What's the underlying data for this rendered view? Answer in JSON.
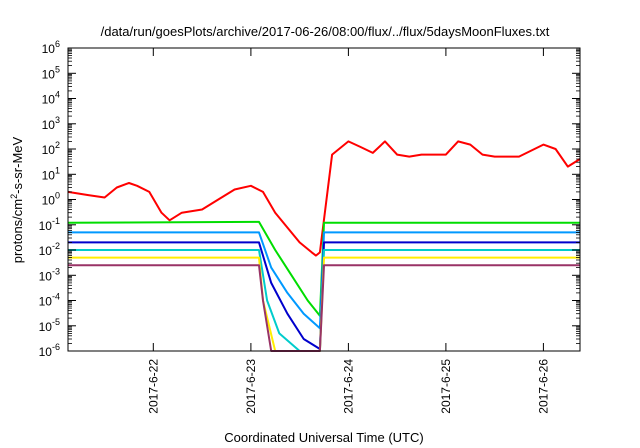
{
  "chart_data": {
    "type": "line",
    "title": "/data/run/goesPlots/archive/2017-06-26/08:00/flux/../flux/5daysMoonFluxes.txt",
    "xlabel": "Coordinated Universal Time (UTC)",
    "ylabel": {
      "base": "protons/cm",
      "sup": "2",
      "rest": "-s-sr-MeV"
    },
    "y_scale": "log",
    "ylim": [
      1e-06,
      1000000.0
    ],
    "y_ticks": [
      {
        "base": "10",
        "exp": "-6"
      },
      {
        "base": "10",
        "exp": "-5"
      },
      {
        "base": "10",
        "exp": "-4"
      },
      {
        "base": "10",
        "exp": "-3"
      },
      {
        "base": "10",
        "exp": "-2"
      },
      {
        "base": "10",
        "exp": "-1"
      },
      {
        "base": "10",
        "exp": "0"
      },
      {
        "base": "10",
        "exp": "1"
      },
      {
        "base": "10",
        "exp": "2"
      },
      {
        "base": "10",
        "exp": "3"
      },
      {
        "base": "10",
        "exp": "4"
      },
      {
        "base": "10",
        "exp": "5"
      },
      {
        "base": "10",
        "exp": "6"
      }
    ],
    "xlim": [
      "2017-06-21 03:00",
      "2017-06-26 09:00"
    ],
    "x_ticks": [
      "2017-6-22",
      "2017-6-23",
      "2017-6-24",
      "2017-6-25",
      "2017-6-26"
    ],
    "grid": false,
    "legend": "none",
    "series": [
      {
        "color": "#ff0000",
        "x": [
          "2017-06-21 03:00",
          "2017-06-21 08:00",
          "2017-06-21 12:00",
          "2017-06-21 15:00",
          "2017-06-21 18:00",
          "2017-06-21 20:00",
          "2017-06-21 23:00",
          "2017-06-22 02:00",
          "2017-06-22 04:00",
          "2017-06-22 07:00",
          "2017-06-22 12:00",
          "2017-06-22 16:00",
          "2017-06-22 20:00",
          "2017-06-23 00:00",
          "2017-06-23 03:00",
          "2017-06-23 06:00",
          "2017-06-23 12:00",
          "2017-06-23 15:00",
          "2017-06-23 16:00",
          "2017-06-23 17:00",
          "2017-06-23 20:00",
          "2017-06-24 00:00",
          "2017-06-24 03:00",
          "2017-06-24 06:00",
          "2017-06-24 09:00",
          "2017-06-24 12:00",
          "2017-06-24 15:00",
          "2017-06-24 18:00",
          "2017-06-25 00:00",
          "2017-06-25 03:00",
          "2017-06-25 06:00",
          "2017-06-25 09:00",
          "2017-06-25 12:00",
          "2017-06-25 18:00",
          "2017-06-26 00:00",
          "2017-06-26 03:00",
          "2017-06-26 06:00",
          "2017-06-26 09:00"
        ],
        "y": [
          2.0,
          1.5,
          1.2,
          3.0,
          4.5,
          3.5,
          2.0,
          0.3,
          0.15,
          0.3,
          0.4,
          1.0,
          2.5,
          3.5,
          2.0,
          0.3,
          0.02,
          0.008,
          0.006,
          0.008,
          60,
          200,
          120,
          70,
          200,
          60,
          50,
          60,
          60,
          200,
          150,
          60,
          50,
          50,
          150,
          100,
          20,
          40
        ]
      },
      {
        "color": "#00dd00",
        "x": [
          "2017-06-21 03:00",
          "2017-06-23 02:00",
          "2017-06-23 06:00",
          "2017-06-23 10:00",
          "2017-06-23 14:00",
          "2017-06-23 17:00",
          "2017-06-23 18:00",
          "2017-06-26 09:00"
        ],
        "y": [
          0.12,
          0.13,
          0.01,
          0.001,
          0.0001,
          2.5e-05,
          0.12,
          0.12
        ]
      },
      {
        "color": "#0099ff",
        "x": [
          "2017-06-21 03:00",
          "2017-06-23 02:00",
          "2017-06-23 05:00",
          "2017-06-23 09:00",
          "2017-06-23 13:00",
          "2017-06-23 17:00",
          "2017-06-23 18:00",
          "2017-06-26 09:00"
        ],
        "y": [
          0.05,
          0.05,
          0.002,
          0.0002,
          3e-05,
          8e-06,
          0.05,
          0.05
        ]
      },
      {
        "color": "#0000cc",
        "x": [
          "2017-06-21 03:00",
          "2017-06-23 02:00",
          "2017-06-23 05:00",
          "2017-06-23 09:00",
          "2017-06-23 13:00",
          "2017-06-23 17:00",
          "2017-06-23 18:00",
          "2017-06-26 09:00"
        ],
        "y": [
          0.02,
          0.02,
          0.0005,
          3e-05,
          3e-06,
          1.2e-06,
          0.02,
          0.02
        ]
      },
      {
        "color": "#00cccc",
        "x": [
          "2017-06-21 03:00",
          "2017-06-23 02:00",
          "2017-06-23 04:00",
          "2017-06-23 07:00",
          "2017-06-23 12:00",
          "2017-06-23 17:00",
          "2017-06-23 18:00",
          "2017-06-26 09:00"
        ],
        "y": [
          0.01,
          0.01,
          0.0001,
          5e-06,
          1e-06,
          1e-06,
          0.01,
          0.01
        ]
      },
      {
        "color": "#ffee00",
        "x": [
          "2017-06-21 03:00",
          "2017-06-23 02:00",
          "2017-06-23 03:00",
          "2017-06-23 06:00",
          "2017-06-23 17:00",
          "2017-06-23 18:00",
          "2017-06-26 09:00"
        ],
        "y": [
          0.005,
          0.005,
          0.0001,
          1e-06,
          1e-06,
          0.005,
          0.005
        ]
      },
      {
        "color": "#993366",
        "x": [
          "2017-06-21 03:00",
          "2017-06-23 02:00",
          "2017-06-23 03:00",
          "2017-06-23 05:00",
          "2017-06-23 17:00",
          "2017-06-23 18:00",
          "2017-06-26 09:00"
        ],
        "y": [
          0.0025,
          0.0025,
          0.0001,
          1e-06,
          1e-06,
          0.0025,
          0.0025
        ]
      }
    ]
  }
}
